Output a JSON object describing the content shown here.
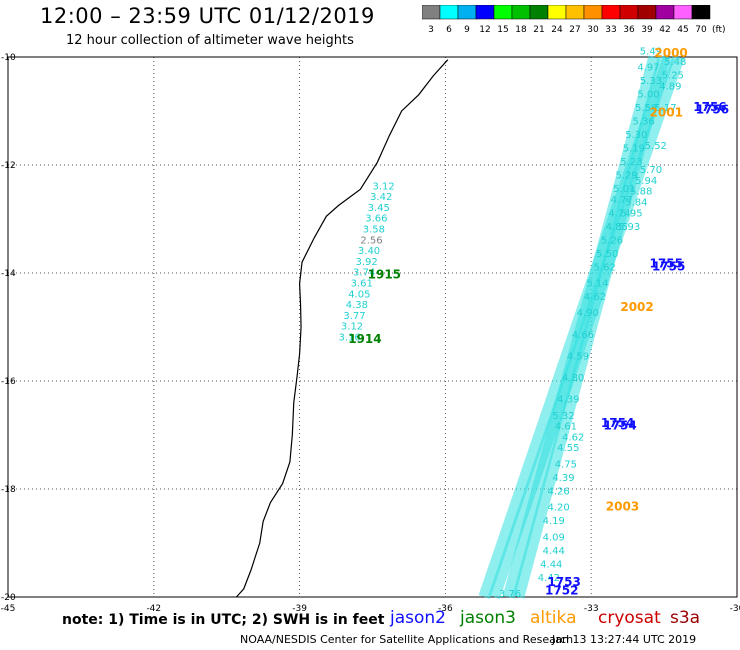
{
  "header": {
    "title": "12:00 – 23:59 UTC 01/12/2019",
    "subtitle": "12 hour collection of altimeter wave heights"
  },
  "colorbar": {
    "unit": "(ft)",
    "bins": [
      {
        "label": "3",
        "color": "#808080"
      },
      {
        "label": "6",
        "color": "#00ffff"
      },
      {
        "label": "9",
        "color": "#00b0f0"
      },
      {
        "label": "12",
        "color": "#0000ff"
      },
      {
        "label": "15",
        "color": "#00ff00"
      },
      {
        "label": "18",
        "color": "#00c000"
      },
      {
        "label": "21",
        "color": "#008000"
      },
      {
        "label": "24",
        "color": "#ffff00"
      },
      {
        "label": "27",
        "color": "#ffc000"
      },
      {
        "label": "30",
        "color": "#ff9000"
      },
      {
        "label": "33",
        "color": "#ff0000"
      },
      {
        "label": "36",
        "color": "#d00000"
      },
      {
        "label": "39",
        "color": "#a00000"
      },
      {
        "label": "42",
        "color": "#a000a0"
      },
      {
        "label": "45",
        "color": "#ff60ff"
      },
      {
        "label": "70",
        "color": "#000000"
      }
    ]
  },
  "chart_data": {
    "type": "scatter",
    "title": "12:00 – 23:59 UTC 01/12/2019",
    "subtitle": "12 hour collection of altimeter wave heights",
    "xlim": [
      -45,
      -30
    ],
    "ylim": [
      -20,
      -10
    ],
    "x_ticks": [
      "-45",
      "-42",
      "-39",
      "-36",
      "-33",
      "-30"
    ],
    "y_ticks": [
      "-10",
      "-12",
      "-14",
      "-16",
      "-18",
      "-20"
    ],
    "grid": true,
    "coast": [
      [
        -35.95,
        -10.05
      ],
      [
        -36.25,
        -10.35
      ],
      [
        -36.55,
        -10.7
      ],
      [
        -36.9,
        -11.0
      ],
      [
        -37.15,
        -11.45
      ],
      [
        -37.4,
        -11.95
      ],
      [
        -37.75,
        -12.45
      ],
      [
        -38.2,
        -12.75
      ],
      [
        -38.45,
        -12.95
      ],
      [
        -38.7,
        -13.35
      ],
      [
        -38.95,
        -13.8
      ],
      [
        -39.0,
        -14.2
      ],
      [
        -38.98,
        -14.6
      ],
      [
        -38.97,
        -15.0
      ],
      [
        -39.0,
        -15.5
      ],
      [
        -39.05,
        -15.9
      ],
      [
        -39.12,
        -16.4
      ],
      [
        -39.15,
        -17.0
      ],
      [
        -39.2,
        -17.5
      ],
      [
        -39.35,
        -17.9
      ],
      [
        -39.6,
        -18.25
      ],
      [
        -39.75,
        -18.6
      ],
      [
        -39.82,
        -19.0
      ],
      [
        -40.0,
        -19.5
      ],
      [
        -40.15,
        -19.85
      ],
      [
        -40.3,
        -20.0
      ]
    ],
    "series": [
      {
        "name": "jason2",
        "color": "#1010ff",
        "tracks": [
          {
            "time": "1756",
            "x": -30.9,
            "y": -11.0
          },
          {
            "time": "1755",
            "x": -31.8,
            "y": -13.9
          },
          {
            "time": "1754",
            "x": -32.8,
            "y": -16.85
          },
          {
            "time": "1753",
            "x": -33.9,
            "y": -19.8
          }
        ]
      },
      {
        "name": "jason3",
        "color": "#008000",
        "tracks": [
          {
            "time": "1915",
            "x": -37.6,
            "y": -14.1
          },
          {
            "time": "1914",
            "x": -38.0,
            "y": -15.3
          }
        ]
      },
      {
        "name": "altika",
        "color": "#ff9900",
        "tracks": [
          {
            "time": "2000",
            "x": -31.7,
            "y": -10.0
          },
          {
            "time": "2001",
            "x": -31.8,
            "y": -11.1
          },
          {
            "time": "2002",
            "x": -32.4,
            "y": -14.7
          },
          {
            "time": "2003",
            "x": -32.7,
            "y": -18.4
          }
        ]
      },
      {
        "name": "jason2",
        "color": "#1010ff",
        "tracks": [
          {
            "time": "1756",
            "x": -30.85,
            "y": -11.05
          },
          {
            "time": "1755",
            "x": -31.75,
            "y": -13.95
          },
          {
            "time": "1754",
            "x": -32.75,
            "y": -16.9
          },
          {
            "time": "1752",
            "x": -33.95,
            "y": -19.95
          }
        ]
      }
    ],
    "coastal_points": [
      {
        "v": "3.12",
        "x": -37.5,
        "y": -12.45
      },
      {
        "v": "3.42",
        "x": -37.55,
        "y": -12.65
      },
      {
        "v": "3.45",
        "x": -37.6,
        "y": -12.85
      },
      {
        "v": "3.66",
        "x": -37.65,
        "y": -13.05
      },
      {
        "v": "3.58",
        "x": -37.7,
        "y": -13.25
      },
      {
        "v": "2.56",
        "x": -37.75,
        "y": -13.45
      },
      {
        "v": "3.40",
        "x": -37.8,
        "y": -13.65
      },
      {
        "v": "3.92",
        "x": -37.85,
        "y": -13.85
      },
      {
        "v": "3.74",
        "x": -37.9,
        "y": -14.05
      },
      {
        "v": "3.61",
        "x": -37.95,
        "y": -14.25
      },
      {
        "v": "4.05",
        "x": -38.0,
        "y": -14.45
      },
      {
        "v": "4.38",
        "x": -38.05,
        "y": -14.65
      },
      {
        "v": "3.77",
        "x": -38.1,
        "y": -14.85
      },
      {
        "v": "3.12",
        "x": -38.15,
        "y": -15.05
      },
      {
        "v": "3.16",
        "x": -38.2,
        "y": -15.25
      }
    ],
    "track_points": [
      {
        "v": "5.49",
        "x": -32.0,
        "y": -9.95
      },
      {
        "v": "4.97",
        "x": -32.05,
        "y": -10.25
      },
      {
        "v": "5.33",
        "x": -32.0,
        "y": -10.5
      },
      {
        "v": "5.00",
        "x": -32.05,
        "y": -10.75
      },
      {
        "v": "5.56",
        "x": -32.1,
        "y": -11.0
      },
      {
        "v": "5.36",
        "x": -32.15,
        "y": -11.25
      },
      {
        "v": "5.30",
        "x": -32.3,
        "y": -11.5
      },
      {
        "v": "5.19",
        "x": -32.35,
        "y": -11.75
      },
      {
        "v": "5.23",
        "x": -32.4,
        "y": -12.0
      },
      {
        "v": "5.29",
        "x": -32.5,
        "y": -12.25
      },
      {
        "v": "5.01",
        "x": -32.55,
        "y": -12.5
      },
      {
        "v": "4.77",
        "x": -32.6,
        "y": -12.7
      },
      {
        "v": "4.74",
        "x": -32.65,
        "y": -12.95
      },
      {
        "v": "4.85",
        "x": -32.7,
        "y": -13.2
      },
      {
        "v": "5.26",
        "x": -32.8,
        "y": -13.45
      },
      {
        "v": "5.50",
        "x": -32.9,
        "y": -13.7
      },
      {
        "v": "5.62",
        "x": -32.95,
        "y": -13.95
      },
      {
        "v": "5.14",
        "x": -33.1,
        "y": -14.25
      },
      {
        "v": "4.62",
        "x": -33.15,
        "y": -14.5
      },
      {
        "v": "4.90",
        "x": -33.3,
        "y": -14.8
      },
      {
        "v": "4.66",
        "x": -33.4,
        "y": -15.2
      },
      {
        "v": "4.59",
        "x": -33.5,
        "y": -15.6
      },
      {
        "v": "4.80",
        "x": -33.6,
        "y": -16.0
      },
      {
        "v": "4.39",
        "x": -33.7,
        "y": -16.4
      },
      {
        "v": "5.32",
        "x": -33.8,
        "y": -16.7
      },
      {
        "v": "4.61",
        "x": -33.75,
        "y": -16.9
      },
      {
        "v": "4.62",
        "x": -33.6,
        "y": -17.1
      },
      {
        "v": "4.55",
        "x": -33.7,
        "y": -17.3
      },
      {
        "v": "4.75",
        "x": -33.75,
        "y": -17.6
      },
      {
        "v": "4.39",
        "x": -33.8,
        "y": -17.85
      },
      {
        "v": "4.26",
        "x": -33.9,
        "y": -18.1
      },
      {
        "v": "4.20",
        "x": -33.9,
        "y": -18.4
      },
      {
        "v": "4.19",
        "x": -34.0,
        "y": -18.65
      },
      {
        "v": "4.09",
        "x": -34.0,
        "y": -18.95
      },
      {
        "v": "4.44",
        "x": -34.0,
        "y": -19.2
      },
      {
        "v": "4.44",
        "x": -34.05,
        "y": -19.45
      },
      {
        "v": "4.42",
        "x": -34.1,
        "y": -19.7
      },
      {
        "v": "3.76",
        "x": -34.9,
        "y": -20.0
      },
      {
        "v": "5.48",
        "x": -31.5,
        "y": -10.15
      },
      {
        "v": "5.25",
        "x": -31.55,
        "y": -10.4
      },
      {
        "v": "4.89",
        "x": -31.6,
        "y": -10.6
      },
      {
        "v": "5.17",
        "x": -31.7,
        "y": -11.0
      },
      {
        "v": "5.52",
        "x": -31.9,
        "y": -11.7
      },
      {
        "v": "5.70",
        "x": -32.0,
        "y": -12.15
      },
      {
        "v": "5.94",
        "x": -32.1,
        "y": -12.35
      },
      {
        "v": "5.88",
        "x": -32.2,
        "y": -12.55
      },
      {
        "v": "5.84",
        "x": -32.3,
        "y": -12.75
      },
      {
        "v": "5.95",
        "x": -32.4,
        "y": -12.95
      },
      {
        "v": "5.93",
        "x": -32.45,
        "y": -13.2
      }
    ]
  },
  "footer": {
    "note": "note: 1) Time is in UTC; 2) SWH is in feet",
    "legend": [
      {
        "label": "jason2",
        "color": "#1010ff"
      },
      {
        "label": "jason3",
        "color": "#008000"
      },
      {
        "label": "altika",
        "color": "#ff9900"
      },
      {
        "label": "cryosat",
        "color": "#cc0000"
      },
      {
        "label": "s3a",
        "color": "#990000"
      }
    ],
    "credit": "NOAA/NESDIS Center for Satellite Applications and Research",
    "timestamp": "Jan 13 13:27:44 UTC 2019"
  }
}
